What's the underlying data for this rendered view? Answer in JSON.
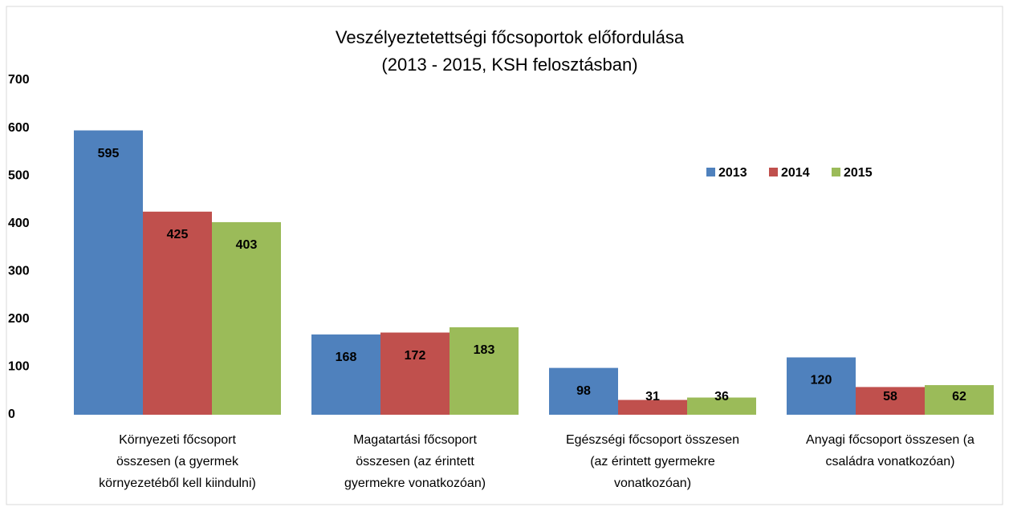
{
  "chart_data": {
    "type": "bar",
    "title": "Veszélyeztetettségi főcsoportok előfordulása",
    "subtitle": "(2013 - 2015, KSH felosztásban)",
    "categories": [
      [
        "Környezeti főcsoport",
        "összesen (a gyermek",
        "környezetéből kell kiindulni)"
      ],
      [
        "Magatartási főcsoport",
        "összesen (az érintett",
        "gyermekre vonatkozóan)"
      ],
      [
        "Egészségi főcsoport összesen",
        "(az érintett gyermekre",
        "vonatkozóan)"
      ],
      [
        "Anyagi főcsoport összesen (a",
        "családra vonatkozóan)"
      ]
    ],
    "series": [
      {
        "name": "2013",
        "color": "#4f81bd",
        "values": [
          595,
          168,
          98,
          120
        ]
      },
      {
        "name": "2014",
        "color": "#c0504d",
        "values": [
          425,
          172,
          31,
          58
        ]
      },
      {
        "name": "2015",
        "color": "#9bbb59",
        "values": [
          403,
          183,
          36,
          62
        ]
      }
    ],
    "ylim": [
      0,
      700
    ],
    "yticks": [
      0,
      100,
      200,
      300,
      400,
      500,
      600,
      700
    ],
    "grid": false,
    "legend": "top-right"
  }
}
